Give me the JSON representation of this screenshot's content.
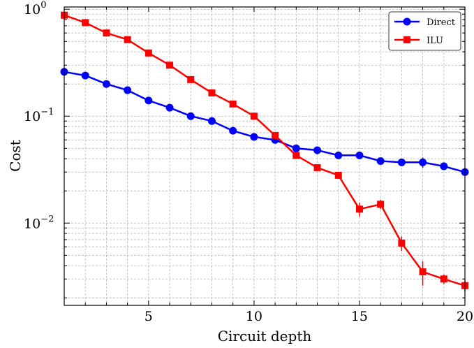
{
  "chart_data": {
    "type": "line",
    "xlabel": "Circuit depth",
    "ylabel": "Cost",
    "y_scale": "log",
    "xlim": [
      1,
      20
    ],
    "ylim": [
      0.0017,
      1.05
    ],
    "x_ticks": [
      5,
      10,
      15,
      20
    ],
    "y_ticks": [
      {
        "value": 1,
        "base": "10",
        "exp": "0"
      },
      {
        "value": 0.1,
        "base": "10",
        "exp": "−1"
      },
      {
        "value": 0.01,
        "base": "10",
        "exp": "−2"
      }
    ],
    "grid": true,
    "legend_position": "top-right",
    "x": [
      1,
      2,
      3,
      4,
      5,
      6,
      7,
      8,
      9,
      10,
      11,
      12,
      13,
      14,
      15,
      16,
      17,
      18,
      19,
      20
    ],
    "series": [
      {
        "name": "Direct",
        "color": "#0000ff",
        "marker": "circle",
        "values": [
          0.26,
          0.24,
          0.2,
          0.175,
          0.14,
          0.12,
          0.1,
          0.09,
          0.073,
          0.064,
          0.06,
          0.05,
          0.048,
          0.043,
          0.043,
          0.038,
          0.037,
          0.037,
          0.034,
          0.03
        ],
        "errors": [
          0.002,
          0.002,
          0.002,
          0.002,
          0.002,
          0.002,
          0.002,
          0.002,
          0.002,
          0.002,
          0.002,
          0.002,
          0.004,
          0.002,
          0.002,
          0.002,
          0.002,
          0.004,
          0.002,
          0.002
        ]
      },
      {
        "name": "ILU",
        "color": "#ff0000",
        "marker": "square",
        "values": [
          0.88,
          0.75,
          0.6,
          0.52,
          0.39,
          0.3,
          0.22,
          0.165,
          0.13,
          0.1,
          0.066,
          0.043,
          0.033,
          0.028,
          0.0135,
          0.015,
          0.0065,
          0.0035,
          0.003,
          0.0026
        ],
        "errors": [
          0.01,
          0.01,
          0.01,
          0.01,
          0.01,
          0.005,
          0.005,
          0.004,
          0.003,
          0.003,
          0.003,
          0.003,
          0.002,
          0.002,
          0.002,
          0.0015,
          0.001,
          0.0009,
          0.0003,
          0.0003
        ]
      }
    ]
  }
}
